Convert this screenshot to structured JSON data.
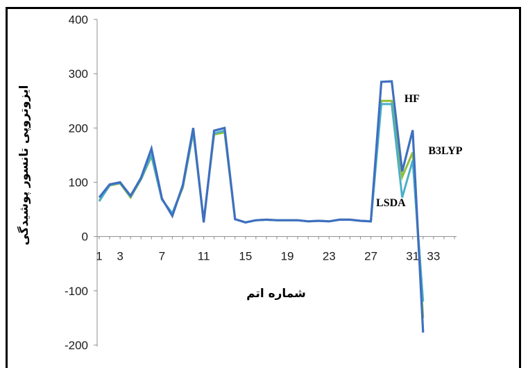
{
  "chart_data": {
    "type": "line",
    "ylabel": "ایزوتروپی  تانسور  پوشیدگی",
    "xlabel": "شماره اتم",
    "ylim": [
      -200,
      400
    ],
    "yticks": [
      -200,
      -100,
      0,
      100,
      200,
      300,
      400
    ],
    "xtick_labels": [
      "1",
      "3",
      "7",
      "11",
      "15",
      "19",
      "23",
      "27",
      "31",
      "33"
    ],
    "xtick_positions": [
      1,
      3,
      7,
      11,
      15,
      19,
      23,
      27,
      31,
      33
    ],
    "xlim": [
      1,
      35
    ],
    "x": [
      1,
      2,
      3,
      4,
      5,
      6,
      7,
      8,
      9,
      10,
      11,
      12,
      13,
      14,
      15,
      16,
      17,
      18,
      19,
      20,
      21,
      22,
      23,
      24,
      25,
      26,
      27,
      28,
      29,
      30,
      31,
      32
    ],
    "series": [
      {
        "name": "HF",
        "color": "#8fbf3a",
        "values": [
          66,
          94,
          98,
          72,
          105,
          148,
          68,
          42,
          90,
          192,
          30,
          188,
          192,
          32,
          26,
          30,
          31,
          30,
          30,
          30,
          28,
          29,
          28,
          31,
          31,
          29,
          28,
          250,
          250,
          110,
          155,
          -150
        ]
      },
      {
        "name": "LSDA",
        "color": "#4bb0c8",
        "values": [
          65,
          95,
          99,
          74,
          106,
          150,
          68,
          43,
          92,
          194,
          29,
          190,
          195,
          32,
          26,
          30,
          31,
          30,
          30,
          30,
          28,
          29,
          28,
          31,
          31,
          29,
          28,
          244,
          244,
          72,
          140,
          -120
        ]
      },
      {
        "name": "B3LYP",
        "color": "#3f6fc0",
        "values": [
          72,
          96,
          100,
          75,
          108,
          162,
          70,
          38,
          95,
          200,
          26,
          195,
          200,
          32,
          26,
          30,
          31,
          30,
          30,
          30,
          28,
          29,
          28,
          31,
          31,
          29,
          28,
          285,
          286,
          120,
          196,
          -177
        ]
      }
    ],
    "annotations": [
      {
        "text": "HF",
        "x": 30.2,
        "y": 248
      },
      {
        "text": "B3LYP",
        "x": 32.5,
        "y": 152
      },
      {
        "text": "LSDA",
        "x": 27.5,
        "y": 56
      }
    ],
    "grid": false,
    "legend": "none"
  }
}
